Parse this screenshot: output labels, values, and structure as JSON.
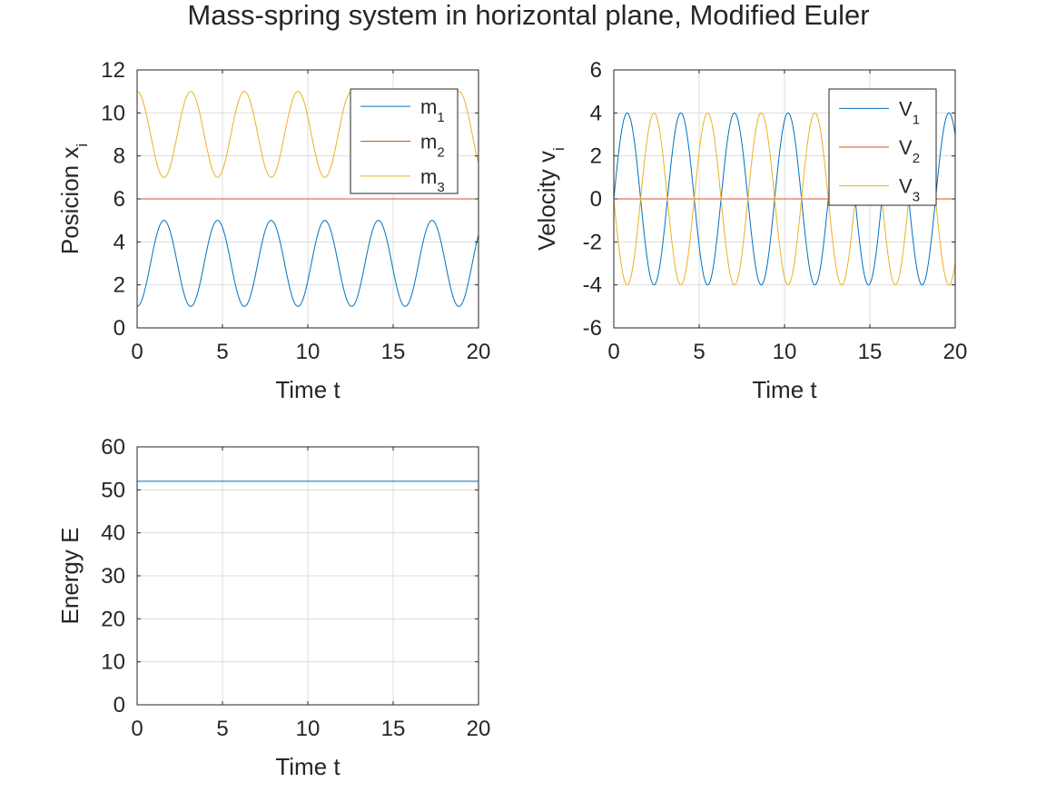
{
  "figure": {
    "title": "Mass-spring system in horizontal plane, Modified Euler"
  },
  "colors": {
    "series1": "#0072BD",
    "series2": "#D95319",
    "series3": "#EDB120",
    "axis": "#262626",
    "grid": "#dcdcdc"
  },
  "chart_data": [
    {
      "id": "position",
      "type": "line",
      "xlabel": "Time t",
      "ylabel": "Posicion x",
      "ylabel_sub": "i",
      "xlim": [
        0,
        20
      ],
      "ylim": [
        0,
        12
      ],
      "xticks": [
        0,
        5,
        10,
        15,
        20
      ],
      "yticks": [
        0,
        2,
        4,
        6,
        8,
        10,
        12
      ],
      "grid": true,
      "legend": "top-right",
      "series": [
        {
          "name": "m",
          "sub": "1",
          "color": "series1",
          "model": "cos",
          "offset": 3,
          "amplitude": -2,
          "omega": 2
        },
        {
          "name": "m",
          "sub": "2",
          "color": "series2",
          "model": "const",
          "offset": 6,
          "amplitude": 0,
          "omega": 0
        },
        {
          "name": "m",
          "sub": "3",
          "color": "series3",
          "model": "cos",
          "offset": 9,
          "amplitude": 2,
          "omega": 2
        }
      ]
    },
    {
      "id": "velocity",
      "type": "line",
      "xlabel": "Time t",
      "ylabel": "Velocity v",
      "ylabel_sub": "i",
      "xlim": [
        0,
        20
      ],
      "ylim": [
        -6,
        6
      ],
      "xticks": [
        0,
        5,
        10,
        15,
        20
      ],
      "yticks": [
        -6,
        -4,
        -2,
        0,
        2,
        4,
        6
      ],
      "grid": true,
      "legend": "top-right",
      "series": [
        {
          "name": "V",
          "sub": "1",
          "color": "series1",
          "model": "sin",
          "offset": 0,
          "amplitude": 4,
          "omega": 2
        },
        {
          "name": "V",
          "sub": "2",
          "color": "series2",
          "model": "const",
          "offset": 0,
          "amplitude": 0,
          "omega": 0
        },
        {
          "name": "V",
          "sub": "3",
          "color": "series3",
          "model": "sin",
          "offset": 0,
          "amplitude": -4,
          "omega": 2
        }
      ]
    },
    {
      "id": "energy",
      "type": "line",
      "xlabel": "Time t",
      "ylabel": "Energy E",
      "ylabel_sub": "",
      "xlim": [
        0,
        20
      ],
      "ylim": [
        0,
        60
      ],
      "xticks": [
        0,
        5,
        10,
        15,
        20
      ],
      "yticks": [
        0,
        10,
        20,
        30,
        40,
        50,
        60
      ],
      "grid": true,
      "legend": "none",
      "series": [
        {
          "name": "",
          "sub": "",
          "color": "series1",
          "model": "const",
          "offset": 52,
          "amplitude": 0,
          "omega": 0
        }
      ]
    }
  ]
}
